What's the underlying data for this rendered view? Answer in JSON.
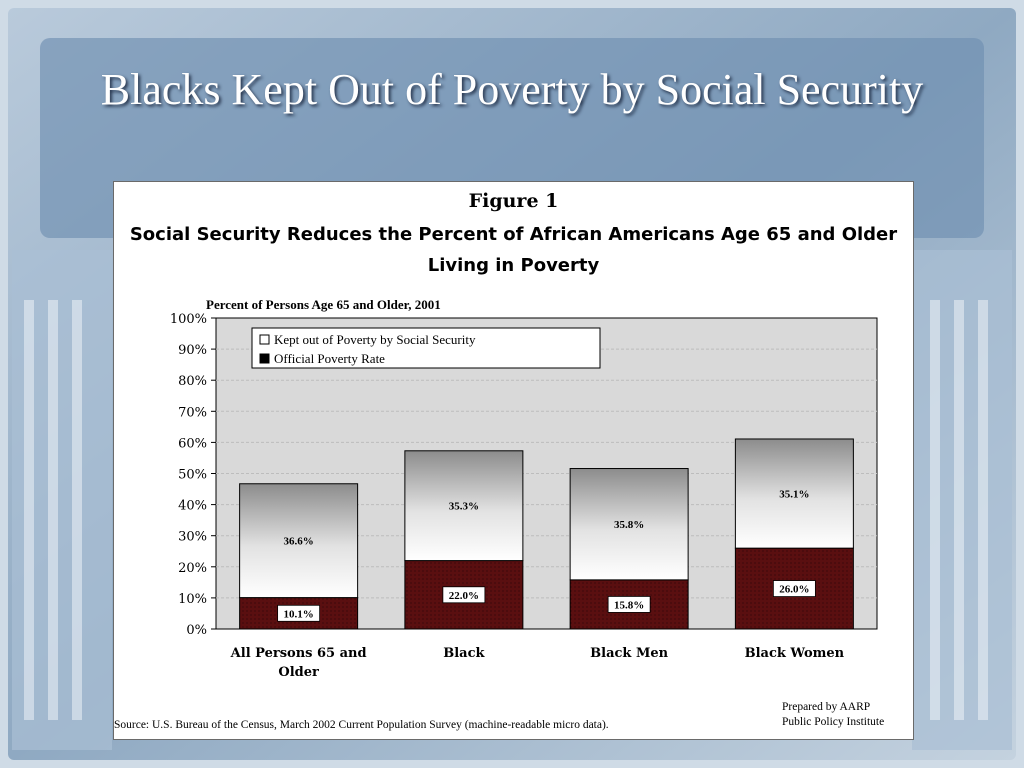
{
  "slide": {
    "title": "Blacks Kept Out of Poverty by Social Security"
  },
  "figure": {
    "label": "Figure 1",
    "title": "Social Security Reduces the Percent of African Americans Age 65 and Older Living in Poverty",
    "source": "Source: U.S. Bureau of the Census, March 2002 Current Population Survey (machine-readable micro data).",
    "prepared_by": [
      "Prepared by AARP",
      "Public Policy Institute"
    ]
  },
  "colors": {
    "background": "#9fb6cc",
    "title_text": "#ffffff",
    "poverty_fill": "#5a0f10",
    "plot_area": "#d9d9d9"
  },
  "chart_data": {
    "type": "bar",
    "stacked": true,
    "title": "Percent of Persons Age 65 and Older, 2001",
    "xlabel": "",
    "ylabel": "",
    "categories": [
      "All Persons 65 and Older",
      "Black",
      "Black Men",
      "Black Women"
    ],
    "ylim": [
      0,
      100
    ],
    "yticks": [
      0,
      10,
      20,
      30,
      40,
      50,
      60,
      70,
      80,
      90,
      100
    ],
    "ytick_labels": [
      "0%",
      "10%",
      "20%",
      "30%",
      "40%",
      "50%",
      "60%",
      "70%",
      "80%",
      "90%",
      "100%"
    ],
    "grid": true,
    "legend_position": "top-left",
    "series": [
      {
        "name": "Official Poverty Rate",
        "values": [
          10.1,
          22.0,
          15.8,
          26.0
        ],
        "labels": [
          "10.1%",
          "22.0%",
          "15.8%",
          "26.0%"
        ]
      },
      {
        "name": "Kept out of Poverty by Social Security",
        "values": [
          36.6,
          35.3,
          35.8,
          35.1
        ],
        "labels": [
          "36.6%",
          "35.3%",
          "35.8%",
          "35.1%"
        ]
      }
    ]
  }
}
